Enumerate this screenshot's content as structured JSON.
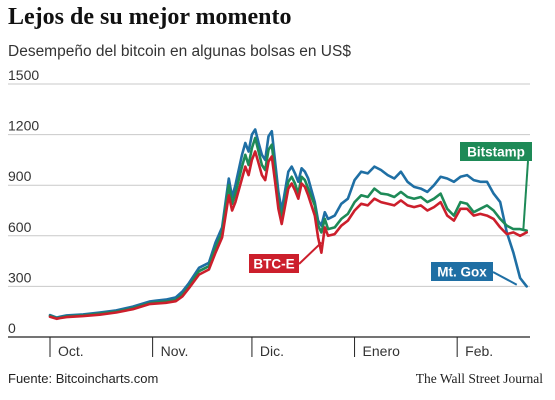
{
  "header": {
    "title": "Lejos de su mejor momento",
    "subtitle": "Desempeño del bitcoin en algunas bolsas en US$"
  },
  "footer": {
    "source": "Fuente: Bitcoincharts.com",
    "publisher": "The Wall Street Journal"
  },
  "colors": {
    "bitstamp": "#1e8a57",
    "btce": "#cc1f2c",
    "mtgox": "#1f6fa4",
    "grid": "#c9c9c9",
    "axis": "#222222"
  },
  "chart_data": {
    "type": "line",
    "title": "Lejos de su mejor momento",
    "subtitle": "Desempeño del bitcoin en algunas bolsas en US$",
    "ylim": [
      0,
      1500
    ],
    "yticks": [
      "1500",
      "1200",
      "900",
      "600",
      "300",
      "0"
    ],
    "xlim": [
      0,
      145
    ],
    "months": [
      {
        "label": "Oct.",
        "start": 0
      },
      {
        "label": "Nov.",
        "start": 31
      },
      {
        "label": "Dic.",
        "start": 61
      },
      {
        "label": "Enero",
        "start": 92
      },
      {
        "label": "Feb.",
        "start": 123
      }
    ],
    "grid": true,
    "series": [
      {
        "name": "Bitstamp",
        "color": "#1e8a57",
        "x": [
          0,
          2,
          3,
          5,
          10,
          15,
          20,
          25,
          30,
          32,
          35,
          38,
          40,
          42,
          45,
          48,
          50,
          52,
          54,
          55,
          56,
          58,
          59,
          60,
          61,
          62,
          63,
          64,
          65,
          66,
          67,
          68,
          69,
          70,
          72,
          73,
          74,
          75,
          76,
          77,
          78,
          80,
          81,
          82,
          83,
          84,
          86,
          88,
          90,
          92,
          94,
          96,
          98,
          100,
          102,
          104,
          106,
          108,
          110,
          112,
          114,
          116,
          118,
          120,
          122,
          124,
          126,
          128,
          130,
          132,
          134,
          136,
          138,
          140,
          142,
          144
        ],
        "y": [
          125,
          110,
          115,
          122,
          128,
          138,
          150,
          170,
          200,
          205,
          210,
          220,
          250,
          300,
          390,
          420,
          530,
          620,
          900,
          790,
          850,
          1010,
          1080,
          1020,
          1120,
          1180,
          1100,
          1020,
          990,
          1110,
          1140,
          970,
          800,
          700,
          920,
          950,
          910,
          850,
          950,
          930,
          880,
          780,
          660,
          620,
          700,
          640,
          650,
          700,
          730,
          800,
          840,
          830,
          880,
          850,
          845,
          830,
          860,
          830,
          820,
          830,
          800,
          820,
          850,
          760,
          720,
          800,
          790,
          740,
          760,
          780,
          750,
          700,
          660,
          640,
          640,
          630
        ]
      },
      {
        "name": "BTC-E",
        "color": "#cc1f2c",
        "x": [
          0,
          2,
          3,
          5,
          10,
          15,
          20,
          25,
          30,
          32,
          35,
          38,
          40,
          42,
          45,
          48,
          50,
          52,
          54,
          55,
          56,
          58,
          59,
          60,
          61,
          62,
          63,
          64,
          65,
          66,
          67,
          68,
          69,
          70,
          72,
          73,
          74,
          75,
          76,
          77,
          78,
          80,
          81,
          82,
          83,
          84,
          86,
          88,
          90,
          92,
          94,
          96,
          98,
          100,
          102,
          104,
          106,
          108,
          110,
          112,
          114,
          116,
          118,
          120,
          122,
          124,
          126,
          128,
          130,
          132,
          134,
          136,
          138,
          140,
          142,
          144
        ],
        "y": [
          120,
          108,
          112,
          118,
          124,
          132,
          145,
          165,
          195,
          198,
          203,
          212,
          240,
          290,
          370,
          400,
          500,
          590,
          840,
          750,
          800,
          940,
          1010,
          960,
          1050,
          1100,
          1030,
          960,
          930,
          1040,
          1070,
          920,
          760,
          670,
          880,
          910,
          870,
          820,
          910,
          890,
          840,
          720,
          590,
          500,
          650,
          600,
          610,
          660,
          690,
          750,
          790,
          780,
          820,
          800,
          790,
          780,
          810,
          780,
          770,
          780,
          750,
          770,
          800,
          720,
          690,
          760,
          760,
          720,
          730,
          720,
          700,
          650,
          610,
          620,
          600,
          620
        ]
      },
      {
        "name": "Mt. Gox",
        "color": "#1f6fa4",
        "x": [
          0,
          2,
          3,
          5,
          10,
          15,
          20,
          25,
          30,
          32,
          35,
          38,
          40,
          42,
          45,
          48,
          50,
          52,
          54,
          55,
          56,
          58,
          59,
          60,
          61,
          62,
          63,
          64,
          65,
          66,
          67,
          68,
          69,
          70,
          72,
          73,
          74,
          75,
          76,
          77,
          78,
          80,
          81,
          82,
          83,
          84,
          86,
          88,
          90,
          92,
          94,
          96,
          98,
          100,
          102,
          104,
          106,
          108,
          110,
          112,
          114,
          116,
          118,
          120,
          122,
          124,
          126,
          128,
          130,
          132,
          134,
          136,
          138,
          140,
          142,
          144
        ],
        "y": [
          130,
          115,
          120,
          128,
          134,
          145,
          158,
          180,
          210,
          215,
          222,
          235,
          270,
          320,
          410,
          440,
          560,
          650,
          940,
          830,
          900,
          1080,
          1150,
          1100,
          1200,
          1230,
          1150,
          1080,
          1050,
          1190,
          1220,
          1040,
          860,
          750,
          980,
          1010,
          970,
          920,
          1000,
          980,
          940,
          800,
          690,
          660,
          740,
          700,
          720,
          790,
          820,
          930,
          980,
          970,
          1010,
          990,
          960,
          940,
          980,
          920,
          890,
          880,
          860,
          900,
          950,
          940,
          920,
          950,
          960,
          930,
          920,
          920,
          850,
          800,
          620,
          500,
          350,
          300
        ]
      }
    ],
    "callouts": [
      {
        "label": "Bitstamp",
        "series": "Bitstamp"
      },
      {
        "label": "BTC-E",
        "series": "BTC-E"
      },
      {
        "label": "Mt. Gox",
        "series": "Mt. Gox"
      }
    ]
  }
}
